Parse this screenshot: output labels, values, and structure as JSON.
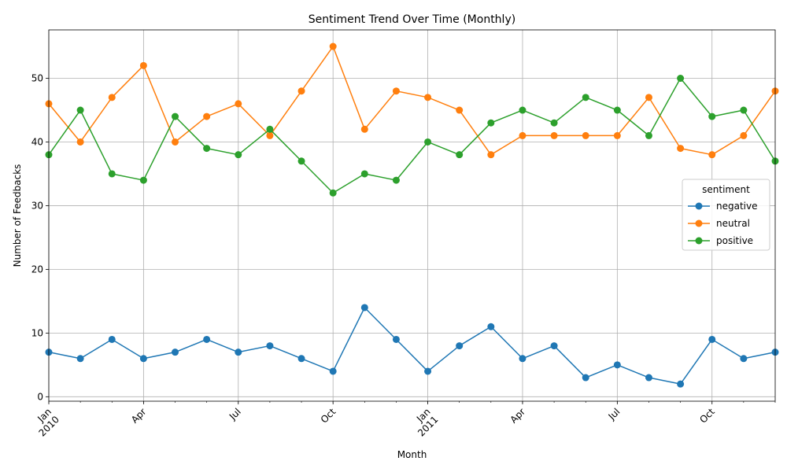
{
  "chart_data": {
    "type": "line",
    "title": "Sentiment Trend Over Time (Monthly)",
    "xlabel": "Month",
    "ylabel": "Number of Feedbacks",
    "x": [
      "2010-01",
      "2010-02",
      "2010-03",
      "2010-04",
      "2010-05",
      "2010-06",
      "2010-07",
      "2010-08",
      "2010-09",
      "2010-10",
      "2010-11",
      "2010-12",
      "2011-01",
      "2011-02",
      "2011-03",
      "2011-04",
      "2011-05",
      "2011-06",
      "2011-07",
      "2011-08",
      "2011-09",
      "2011-10",
      "2011-11",
      "2011-12"
    ],
    "ylim": [
      -0.7,
      57.6
    ],
    "yticks": [
      0,
      10,
      20,
      30,
      40,
      50
    ],
    "xticks": [
      {
        "x": "2010-01",
        "label": "Jan",
        "sublabel": "2010"
      },
      {
        "x": "2010-04",
        "label": "Apr",
        "sublabel": ""
      },
      {
        "x": "2010-07",
        "label": "Jul",
        "sublabel": ""
      },
      {
        "x": "2010-10",
        "label": "Oct",
        "sublabel": ""
      },
      {
        "x": "2011-01",
        "label": "Jan",
        "sublabel": "2011"
      },
      {
        "x": "2011-04",
        "label": "Apr",
        "sublabel": ""
      },
      {
        "x": "2011-07",
        "label": "Jul",
        "sublabel": ""
      },
      {
        "x": "2011-10",
        "label": "Oct",
        "sublabel": ""
      }
    ],
    "grid": true,
    "legend": {
      "title": "sentiment",
      "position": "center-right"
    },
    "series": [
      {
        "name": "negative",
        "color": "#1f77b4",
        "values": [
          7,
          6,
          9,
          6,
          7,
          9,
          7,
          8,
          6,
          4,
          14,
          9,
          4,
          8,
          11,
          6,
          8,
          3,
          5,
          3,
          2,
          9,
          6,
          7
        ]
      },
      {
        "name": "neutral",
        "color": "#ff7f0e",
        "values": [
          46,
          40,
          47,
          52,
          40,
          44,
          46,
          41,
          48,
          55,
          42,
          48,
          47,
          45,
          38,
          41,
          41,
          41,
          41,
          47,
          39,
          38,
          41,
          48
        ]
      },
      {
        "name": "positive",
        "color": "#2ca02c",
        "values": [
          38,
          45,
          35,
          34,
          44,
          39,
          38,
          42,
          37,
          32,
          35,
          34,
          40,
          38,
          43,
          45,
          43,
          47,
          45,
          41,
          50,
          44,
          45,
          37
        ]
      }
    ]
  }
}
